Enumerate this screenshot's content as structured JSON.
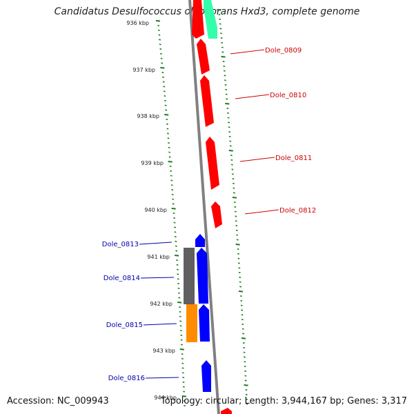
{
  "title": "Candidatus Desulfococcus oleovorans Hxd3, complete genome",
  "accession": "Accession: NC_009943",
  "topology": "Topology: circular; Length: 3,944,167 bp; Genes: 3,317",
  "colors": {
    "backbone": "#808080",
    "tick": "#1a7a1a",
    "reverse_gene": "#ff0000",
    "forward_gene": "#0000ff",
    "gray_feature": "#606060",
    "orange_feature": "#ff8c00",
    "green_feature": "#33ffaa",
    "right_label": "#cc0000",
    "left_label": "#0000aa"
  },
  "kbp_labels": [
    "936 kbp",
    "937 kbp",
    "938 kbp",
    "939 kbp",
    "940 kbp",
    "941 kbp",
    "942 kbp",
    "943 kbp",
    "944 kbp"
  ],
  "right_genes": [
    {
      "id": "Dole_0809"
    },
    {
      "id": "Dole_0810"
    },
    {
      "id": "Dole_0811"
    },
    {
      "id": "Dole_0812"
    }
  ],
  "left_genes": [
    {
      "id": "Dole_0813"
    },
    {
      "id": "Dole_0814"
    },
    {
      "id": "Dole_0815"
    },
    {
      "id": "Dole_0816"
    }
  ]
}
